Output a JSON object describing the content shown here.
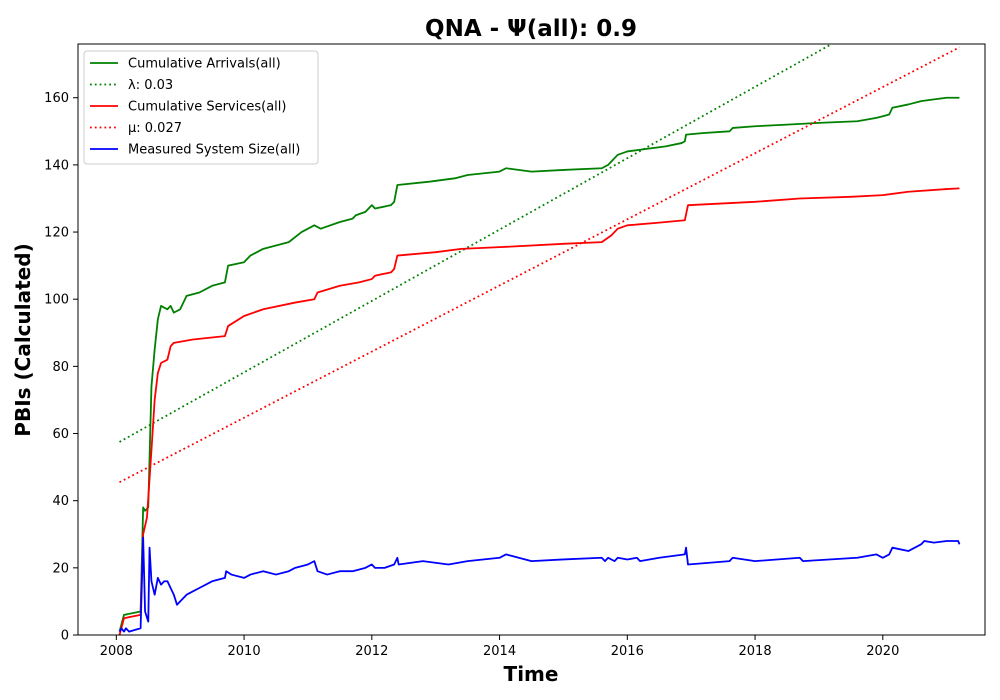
{
  "chart_data": {
    "type": "line",
    "title": "QNA -  Ψ(all): 0.9",
    "xlabel": "Time",
    "ylabel": "PBIs (Calculated)",
    "xlim": [
      2007.4,
      2021.6
    ],
    "ylim": [
      0,
      176
    ],
    "x_ticks": [
      2008,
      2010,
      2012,
      2014,
      2016,
      2018,
      2020
    ],
    "y_ticks": [
      0,
      20,
      40,
      60,
      80,
      100,
      120,
      140,
      160
    ],
    "grid": false,
    "legend_position": "top-left",
    "series": [
      {
        "name": "Cumulative Arrivals(all)",
        "style": "solid",
        "color": "#008000",
        "points": [
          [
            2008.05,
            1
          ],
          [
            2008.12,
            6
          ],
          [
            2008.38,
            7
          ],
          [
            2008.42,
            38
          ],
          [
            2008.45,
            37
          ],
          [
            2008.5,
            38
          ],
          [
            2008.55,
            74
          ],
          [
            2008.6,
            85
          ],
          [
            2008.65,
            94
          ],
          [
            2008.7,
            98
          ],
          [
            2008.8,
            97
          ],
          [
            2008.85,
            98
          ],
          [
            2008.9,
            96
          ],
          [
            2009.0,
            97
          ],
          [
            2009.1,
            101
          ],
          [
            2009.3,
            102
          ],
          [
            2009.5,
            104
          ],
          [
            2009.7,
            105
          ],
          [
            2009.75,
            110
          ],
          [
            2010.0,
            111
          ],
          [
            2010.1,
            113
          ],
          [
            2010.3,
            115
          ],
          [
            2010.7,
            117
          ],
          [
            2010.9,
            120
          ],
          [
            2011.0,
            121
          ],
          [
            2011.1,
            122
          ],
          [
            2011.2,
            121
          ],
          [
            2011.5,
            123
          ],
          [
            2011.7,
            124
          ],
          [
            2011.75,
            125
          ],
          [
            2011.9,
            126
          ],
          [
            2011.95,
            127
          ],
          [
            2012.0,
            128
          ],
          [
            2012.05,
            127
          ],
          [
            2012.3,
            128
          ],
          [
            2012.35,
            129
          ],
          [
            2012.4,
            134
          ],
          [
            2012.9,
            135
          ],
          [
            2013.3,
            136
          ],
          [
            2013.5,
            137
          ],
          [
            2014.0,
            138
          ],
          [
            2014.1,
            139
          ],
          [
            2014.5,
            138
          ],
          [
            2015.0,
            138.5
          ],
          [
            2015.6,
            139
          ],
          [
            2015.7,
            140
          ],
          [
            2015.85,
            143
          ],
          [
            2016.0,
            144
          ],
          [
            2016.2,
            144.5
          ],
          [
            2016.6,
            145.5
          ],
          [
            2016.85,
            146.5
          ],
          [
            2016.9,
            147
          ],
          [
            2016.92,
            149
          ],
          [
            2017.2,
            149.5
          ],
          [
            2017.6,
            150
          ],
          [
            2017.65,
            151
          ],
          [
            2018.0,
            151.5
          ],
          [
            2018.5,
            152
          ],
          [
            2019.0,
            152.5
          ],
          [
            2019.6,
            153
          ],
          [
            2019.9,
            154
          ],
          [
            2020.0,
            154.5
          ],
          [
            2020.1,
            155
          ],
          [
            2020.15,
            157
          ],
          [
            2020.4,
            158
          ],
          [
            2020.6,
            159
          ],
          [
            2020.8,
            159.5
          ],
          [
            2021.0,
            160
          ],
          [
            2021.2,
            160
          ]
        ]
      },
      {
        "name": "λ: 0.03",
        "style": "dotted",
        "color": "#008000",
        "points": [
          [
            2008.05,
            57.5
          ],
          [
            2019.2,
            176
          ]
        ]
      },
      {
        "name": "Cumulative Services(all)",
        "style": "solid",
        "color": "#ff0000",
        "points": [
          [
            2008.05,
            0
          ],
          [
            2008.12,
            5
          ],
          [
            2008.38,
            6
          ],
          [
            2008.42,
            30
          ],
          [
            2008.48,
            35
          ],
          [
            2008.55,
            55
          ],
          [
            2008.6,
            70
          ],
          [
            2008.65,
            78
          ],
          [
            2008.7,
            81
          ],
          [
            2008.8,
            82
          ],
          [
            2008.85,
            86
          ],
          [
            2008.9,
            87
          ],
          [
            2009.2,
            88
          ],
          [
            2009.7,
            89
          ],
          [
            2009.75,
            92
          ],
          [
            2010.0,
            95
          ],
          [
            2010.3,
            97
          ],
          [
            2010.8,
            99
          ],
          [
            2011.1,
            100
          ],
          [
            2011.15,
            102
          ],
          [
            2011.5,
            104
          ],
          [
            2011.8,
            105
          ],
          [
            2012.0,
            106
          ],
          [
            2012.05,
            107
          ],
          [
            2012.3,
            108
          ],
          [
            2012.35,
            109
          ],
          [
            2012.4,
            113
          ],
          [
            2013.0,
            114
          ],
          [
            2013.4,
            115
          ],
          [
            2014.0,
            115.5
          ],
          [
            2015.0,
            116.5
          ],
          [
            2015.6,
            117
          ],
          [
            2015.75,
            119
          ],
          [
            2015.85,
            121
          ],
          [
            2016.0,
            122
          ],
          [
            2016.5,
            122.8
          ],
          [
            2016.9,
            123.5
          ],
          [
            2016.95,
            128
          ],
          [
            2018.0,
            129
          ],
          [
            2018.7,
            130
          ],
          [
            2019.5,
            130.5
          ],
          [
            2020.0,
            131
          ],
          [
            2020.4,
            132
          ],
          [
            2021.0,
            132.8
          ],
          [
            2021.2,
            133
          ]
        ]
      },
      {
        "name": "μ: 0.027",
        "style": "dotted",
        "color": "#ff0000",
        "points": [
          [
            2008.05,
            45.5
          ],
          [
            2021.2,
            175
          ]
        ]
      },
      {
        "name": "Measured System Size(all)",
        "style": "solid",
        "color": "#0000ff",
        "points": [
          [
            2008.05,
            1
          ],
          [
            2008.08,
            2
          ],
          [
            2008.12,
            1
          ],
          [
            2008.15,
            2
          ],
          [
            2008.2,
            1
          ],
          [
            2008.38,
            2
          ],
          [
            2008.42,
            29
          ],
          [
            2008.45,
            7
          ],
          [
            2008.5,
            4
          ],
          [
            2008.52,
            26
          ],
          [
            2008.55,
            16
          ],
          [
            2008.6,
            12
          ],
          [
            2008.65,
            17
          ],
          [
            2008.7,
            15
          ],
          [
            2008.75,
            16
          ],
          [
            2008.8,
            16
          ],
          [
            2008.9,
            12
          ],
          [
            2008.95,
            9
          ],
          [
            2009.0,
            10
          ],
          [
            2009.1,
            12
          ],
          [
            2009.2,
            13
          ],
          [
            2009.3,
            14
          ],
          [
            2009.5,
            16
          ],
          [
            2009.7,
            17
          ],
          [
            2009.72,
            19
          ],
          [
            2009.8,
            18
          ],
          [
            2010.0,
            17
          ],
          [
            2010.1,
            18
          ],
          [
            2010.3,
            19
          ],
          [
            2010.5,
            18
          ],
          [
            2010.7,
            19
          ],
          [
            2010.8,
            20
          ],
          [
            2011.0,
            21
          ],
          [
            2011.1,
            22
          ],
          [
            2011.15,
            19
          ],
          [
            2011.3,
            18
          ],
          [
            2011.5,
            19
          ],
          [
            2011.7,
            19
          ],
          [
            2011.9,
            20
          ],
          [
            2012.0,
            21
          ],
          [
            2012.05,
            20
          ],
          [
            2012.2,
            20
          ],
          [
            2012.35,
            21
          ],
          [
            2012.4,
            23
          ],
          [
            2012.42,
            21
          ],
          [
            2012.8,
            22
          ],
          [
            2013.2,
            21
          ],
          [
            2013.5,
            22
          ],
          [
            2014.0,
            23
          ],
          [
            2014.1,
            24
          ],
          [
            2014.5,
            22
          ],
          [
            2015.0,
            22.5
          ],
          [
            2015.6,
            23
          ],
          [
            2015.65,
            22
          ],
          [
            2015.7,
            23
          ],
          [
            2015.8,
            22
          ],
          [
            2015.85,
            23
          ],
          [
            2016.0,
            22.5
          ],
          [
            2016.15,
            23
          ],
          [
            2016.2,
            22
          ],
          [
            2016.5,
            23
          ],
          [
            2016.9,
            24
          ],
          [
            2016.92,
            26
          ],
          [
            2016.95,
            21
          ],
          [
            2017.6,
            22
          ],
          [
            2017.65,
            23
          ],
          [
            2018.0,
            22
          ],
          [
            2018.7,
            23
          ],
          [
            2018.75,
            22
          ],
          [
            2019.6,
            23
          ],
          [
            2019.9,
            24
          ],
          [
            2020.0,
            23
          ],
          [
            2020.1,
            24
          ],
          [
            2020.15,
            26
          ],
          [
            2020.4,
            25
          ],
          [
            2020.6,
            27
          ],
          [
            2020.65,
            28
          ],
          [
            2020.8,
            27.5
          ],
          [
            2021.0,
            28
          ],
          [
            2021.18,
            28
          ],
          [
            2021.2,
            27
          ]
        ]
      }
    ]
  }
}
